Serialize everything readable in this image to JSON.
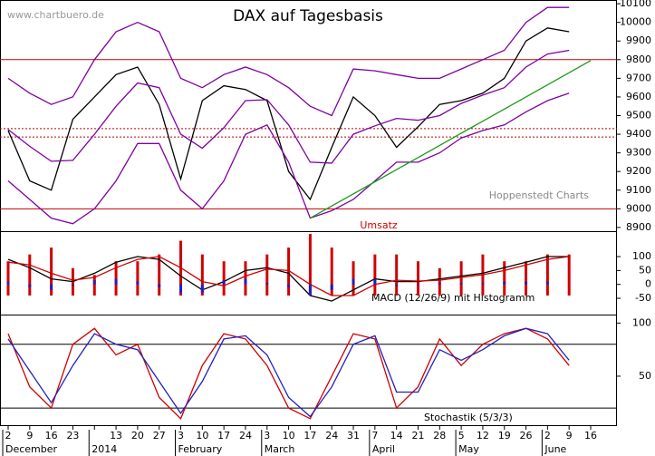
{
  "chart_data": [
    {
      "type": "line",
      "title": "DAX auf Tagesbasis",
      "source": "www.chartbuero.de",
      "annotation": "Hoppenstedt Charts",
      "categories": [
        "2",
        "9",
        "16",
        "23",
        null,
        "13",
        "20",
        "27",
        "3",
        "10",
        "17",
        "24",
        "3",
        "10",
        "17",
        "24",
        "31",
        "7",
        "14",
        "21",
        "28",
        "5",
        "12",
        "19",
        "26",
        "2",
        "9",
        "16"
      ],
      "month_labels": [
        "December",
        null,
        null,
        null,
        "2014",
        null,
        null,
        null,
        "February",
        null,
        null,
        null,
        "March",
        null,
        null,
        null,
        null,
        "April",
        null,
        null,
        null,
        "May",
        null,
        null,
        null,
        "June",
        null,
        null
      ],
      "ylim": [
        8880,
        10120
      ],
      "yticks": [
        10100,
        10000,
        9900,
        9800,
        9700,
        9600,
        9500,
        9400,
        9300,
        9200,
        9100,
        9000,
        8900
      ],
      "levels": [
        {
          "value": 9800,
          "color": "#c00000",
          "dotted": false
        },
        {
          "value": 9000,
          "color": "#c00000",
          "dotted": false
        },
        {
          "value": 9430,
          "color": "#c00000",
          "dotted": true
        },
        {
          "value": 9385,
          "color": "#c00000",
          "dotted": true
        }
      ],
      "series": [
        {
          "color": "#000000",
          "values": [
            9420,
            9150,
            9100,
            9480,
            9600,
            9720,
            9760,
            9560,
            9160,
            9580,
            9660,
            9640,
            9580,
            9200,
            9050,
            9330,
            9600,
            9500,
            9330,
            9440,
            9560,
            9580,
            9620,
            9700,
            9900,
            9970,
            9950,
            null
          ]
        },
        {
          "color": "#8000a0",
          "values": [
            9700,
            9620,
            9560,
            9600,
            9800,
            9950,
            10000,
            9950,
            9700,
            9650,
            9720,
            9760,
            9720,
            9650,
            9550,
            9500,
            9750,
            9740,
            9720,
            9700,
            9700,
            9750,
            9800,
            9850,
            10000,
            10080,
            10080,
            null
          ]
        },
        {
          "color": "#8000a0",
          "values": [
            9425,
            9335,
            9255,
            9260,
            9400,
            9550,
            9675,
            9650,
            9400,
            9325,
            9435,
            9580,
            9585,
            9450,
            9250,
            9245,
            9400,
            9445,
            9485,
            9475,
            9500,
            9565,
            9610,
            9650,
            9760,
            9830,
            9850,
            null
          ]
        },
        {
          "color": "#8000a0",
          "values": [
            9150,
            9050,
            8950,
            8920,
            9000,
            9150,
            9350,
            9350,
            9100,
            9000,
            9150,
            9400,
            9450,
            9250,
            8950,
            8990,
            9050,
            9150,
            9250,
            9250,
            9300,
            9380,
            9420,
            9450,
            9520,
            9580,
            9620,
            null
          ]
        },
        {
          "color": "#1a9a1a",
          "values": [
            null,
            null,
            null,
            null,
            null,
            null,
            null,
            null,
            null,
            null,
            null,
            null,
            null,
            null,
            8950,
            9015,
            9080,
            9145,
            9210,
            9275,
            9340,
            9405,
            9470,
            9535,
            9600,
            9665,
            9730,
            9795
          ]
        }
      ]
    },
    {
      "type": "bar",
      "title": "Umsatz",
      "color": "#d00000",
      "values": [
        5,
        6,
        7,
        4,
        3,
        5,
        5,
        6,
        8,
        6,
        5,
        5,
        6,
        7,
        9,
        7,
        5,
        6,
        6,
        5,
        4,
        5,
        6,
        5,
        5,
        6,
        6,
        null
      ]
    },
    {
      "type": "macd",
      "label": "MACD (12/26/9) mit Histogramm",
      "ylim": [
        -102,
        149
      ],
      "yticks": [
        100,
        50,
        0,
        -50
      ],
      "series": [
        {
          "kind": "line",
          "color": "#000000",
          "values": [
            90,
            60,
            20,
            10,
            40,
            80,
            100,
            90,
            30,
            -20,
            10,
            50,
            60,
            40,
            -40,
            -60,
            -20,
            20,
            10,
            10,
            20,
            30,
            40,
            60,
            80,
            100,
            100,
            null
          ]
        },
        {
          "kind": "line",
          "color": "#d00000",
          "values": [
            80,
            70,
            40,
            15,
            25,
            60,
            90,
            100,
            60,
            10,
            -5,
            30,
            55,
            50,
            0,
            -40,
            -40,
            0,
            15,
            12,
            15,
            25,
            35,
            50,
            70,
            90,
            100,
            null
          ]
        },
        {
          "kind": "bar",
          "color": "#2020c0",
          "values": [
            10,
            -10,
            -20,
            -5,
            15,
            20,
            10,
            -10,
            -30,
            -30,
            15,
            20,
            5,
            -10,
            -40,
            -20,
            20,
            20,
            -5,
            -2,
            5,
            5,
            5,
            10,
            10,
            10,
            0,
            null
          ]
        }
      ]
    },
    {
      "type": "line",
      "label": "Stochastik (5/3/3)",
      "ylim": [
        3,
        108
      ],
      "yticks": [
        100,
        50
      ],
      "levels": [
        {
          "value": 80,
          "color": "#000000",
          "dotted": false
        },
        {
          "value": 20,
          "color": "#000000",
          "dotted": false
        }
      ],
      "series": [
        {
          "color": "#d00000",
          "values": [
            90,
            40,
            20,
            80,
            95,
            70,
            80,
            30,
            10,
            60,
            90,
            85,
            60,
            20,
            10,
            50,
            90,
            85,
            20,
            40,
            85,
            60,
            80,
            90,
            95,
            85,
            60,
            null
          ]
        },
        {
          "color": "#2020c0",
          "values": [
            85,
            55,
            25,
            60,
            90,
            80,
            75,
            45,
            15,
            45,
            85,
            88,
            70,
            30,
            12,
            40,
            80,
            88,
            35,
            35,
            75,
            65,
            75,
            88,
            95,
            90,
            65,
            null
          ]
        }
      ]
    }
  ]
}
